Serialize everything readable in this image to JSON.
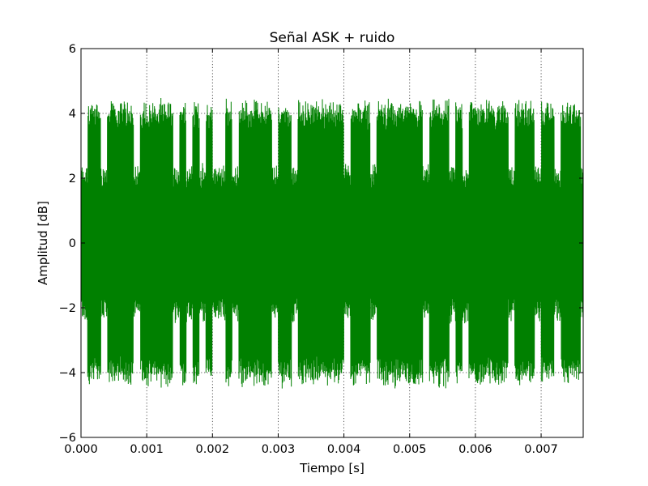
{
  "chart_data": {
    "type": "line",
    "title": "Señal ASK + ruido",
    "xlabel": "Tiempo [s]",
    "ylabel": "Amplitud [dB]",
    "xlim": [
      0,
      0.00764
    ],
    "ylim": [
      -6,
      6
    ],
    "x_ticks": [
      0.0,
      0.001,
      0.002,
      0.003,
      0.004,
      0.005,
      0.006,
      0.007
    ],
    "x_tick_labels": [
      "0.000",
      "0.001",
      "0.002",
      "0.003",
      "0.004",
      "0.005",
      "0.006",
      "0.007"
    ],
    "y_ticks": [
      -6,
      -4,
      -2,
      0,
      2,
      4,
      6
    ],
    "y_tick_labels": [
      "−6",
      "−4",
      "−2",
      "0",
      "2",
      "4",
      "6"
    ],
    "grid": true,
    "series": [
      {
        "color": "#008000",
        "signal": {
          "t_start": 0.0,
          "t_end": 0.00764,
          "bit_duration": 0.0001,
          "low_amplitude": 2.2,
          "high_amplitude": 4.2,
          "noise_amplitude": 0.3,
          "bits": [
            0,
            1,
            1,
            0,
            1,
            1,
            1,
            1,
            0,
            1,
            1,
            1,
            1,
            1,
            0,
            1,
            0,
            1,
            0,
            1,
            0,
            0,
            1,
            0,
            1,
            1,
            1,
            1,
            1,
            0,
            1,
            1,
            0,
            1,
            1,
            1,
            1,
            1,
            1,
            1,
            0,
            1,
            1,
            1,
            0,
            1,
            1,
            1,
            1,
            1,
            1,
            1,
            0,
            1,
            1,
            1,
            0,
            1,
            0,
            1,
            1,
            1,
            1,
            1,
            1,
            0,
            1,
            1,
            1,
            0,
            1,
            1,
            0,
            1,
            1,
            1,
            0
          ]
        }
      }
    ]
  }
}
